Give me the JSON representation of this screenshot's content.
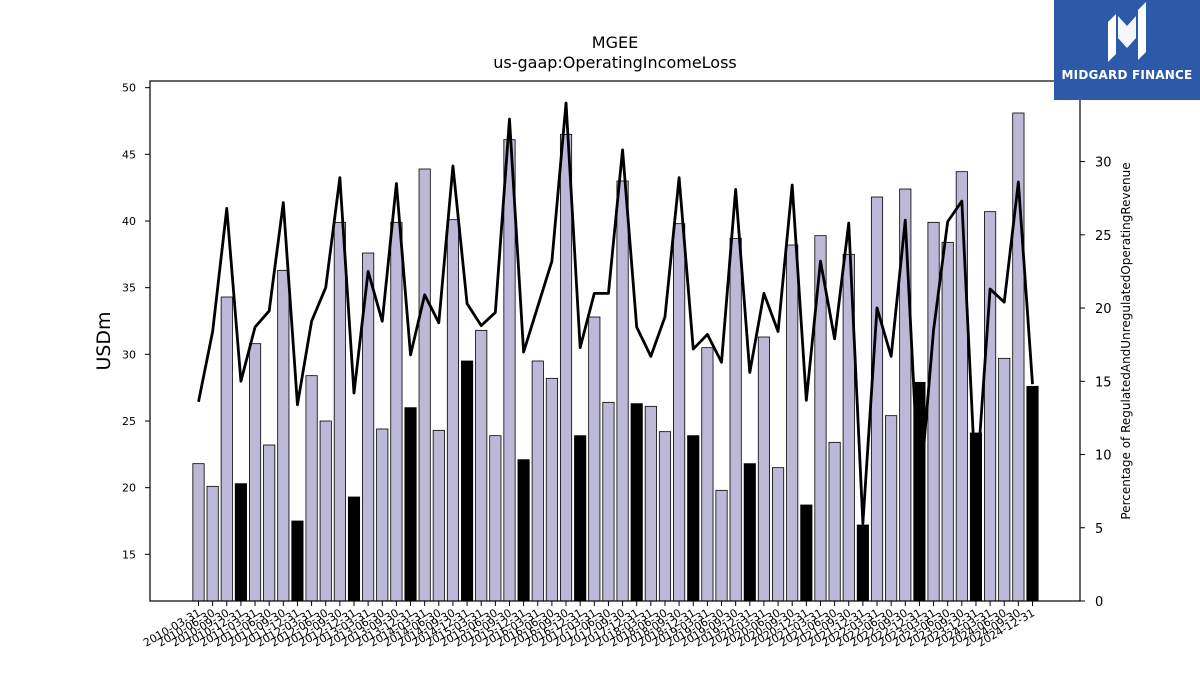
{
  "chart_data": {
    "type": "bar",
    "title": "MGEE",
    "subtitle": "us-gaap:OperatingIncomeLoss",
    "ylabel": "USDm",
    "y2label": "Percentage of RegulatedAndUnregulatedOperatingRevenue",
    "ylim": [
      11.5,
      50.5
    ],
    "y2lim": [
      0,
      35.5
    ],
    "yticks": [
      15,
      20,
      25,
      30,
      35,
      40,
      45,
      50
    ],
    "y2ticks": [
      0,
      5,
      10,
      15,
      20,
      25,
      30
    ],
    "categories": [
      "2010-03-31",
      "2010-06-30",
      "2010-09-30",
      "2010-12-31",
      "2011-03-31",
      "2011-06-30",
      "2011-09-30",
      "2011-12-31",
      "2012-03-31",
      "2012-06-30",
      "2012-09-30",
      "2012-12-31",
      "2013-03-31",
      "2013-06-30",
      "2013-09-30",
      "2013-12-31",
      "2014-03-31",
      "2014-06-30",
      "2014-09-30",
      "2014-12-31",
      "2015-03-31",
      "2015-06-30",
      "2015-09-30",
      "2015-12-31",
      "2016-03-31",
      "2016-06-30",
      "2016-09-30",
      "2016-12-31",
      "2017-03-31",
      "2017-06-30",
      "2017-09-30",
      "2017-12-31",
      "2018-03-31",
      "2018-06-30",
      "2018-09-30",
      "2018-12-31",
      "2019-03-31",
      "2019-06-30",
      "2019-09-30",
      "2019-12-31",
      "2020-03-31",
      "2020-06-30",
      "2020-09-30",
      "2020-12-31",
      "2021-03-31",
      "2021-06-30",
      "2021-09-30",
      "2021-12-31",
      "2022-03-31",
      "2022-06-30",
      "2022-09-30",
      "2022-12-31",
      "2023-03-31",
      "2023-06-30",
      "2023-09-30",
      "2023-12-31",
      "2024-03-31",
      "2024-06-30",
      "2024-09-30",
      "2024-12-31"
    ],
    "series": [
      {
        "values": [
          21.8,
          20.1,
          34.3,
          20.3,
          30.8,
          23.2,
          36.3,
          17.5,
          28.4,
          25.0,
          39.9,
          19.3,
          37.6,
          24.4,
          39.9,
          26.0,
          43.9,
          24.3,
          40.1,
          29.5,
          31.8,
          23.9,
          46.1,
          22.1,
          29.5,
          28.2,
          46.5,
          23.9,
          32.8,
          26.4,
          43.0,
          26.3,
          26.1,
          24.2,
          39.8,
          23.9,
          30.5,
          19.8,
          38.7,
          21.8,
          31.3,
          21.5,
          38.2,
          18.7,
          38.9,
          23.4,
          37.5,
          17.2,
          41.8,
          25.4,
          42.4,
          27.9,
          39.9,
          38.4,
          43.7,
          24.1,
          40.7,
          29.7,
          48.1,
          27.6
        ],
        "highlight_quarter": "Q4",
        "color": "#bcb8d8",
        "highlight_color": "#000000"
      },
      {
        "type": "line",
        "axis": "right",
        "color": "#000000",
        "values": [
          13.6,
          18.4,
          26.8,
          15.0,
          18.7,
          19.8,
          27.2,
          13.4,
          19.1,
          21.4,
          28.9,
          14.2,
          22.5,
          19.1,
          28.5,
          16.8,
          20.9,
          19.0,
          29.7,
          20.3,
          18.8,
          19.7,
          32.9,
          17.0,
          20.1,
          23.2,
          34.0,
          17.3,
          21.0,
          21.0,
          30.8,
          18.7,
          16.7,
          19.4,
          28.9,
          17.2,
          18.2,
          16.3,
          28.1,
          15.6,
          21.0,
          18.4,
          28.4,
          13.7,
          23.2,
          17.9,
          25.8,
          5.3,
          20.0,
          16.7,
          26.0,
          7.0,
          18.5,
          25.9,
          27.3,
          7.5,
          21.3,
          20.4,
          28.6,
          14.8
        ]
      }
    ]
  },
  "logo": {
    "text": "MIDGARD FINANCE",
    "name": "midgard-finance-logo",
    "background": "#2c5aa8"
  }
}
